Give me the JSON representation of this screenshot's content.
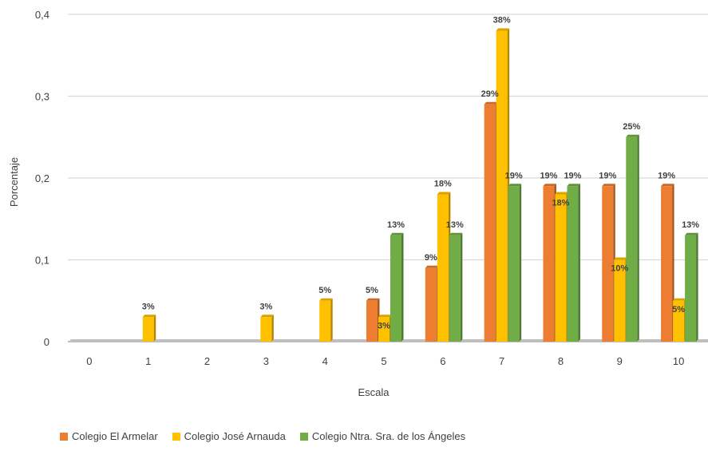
{
  "chart_data": {
    "type": "bar",
    "xlabel": "Escala",
    "ylabel": "Porcentaje",
    "ylim": [
      0,
      0.4
    ],
    "yticks": [
      "0",
      "0,1",
      "0,2",
      "0,3",
      "0,4"
    ],
    "categories": [
      "0",
      "1",
      "2",
      "3",
      "4",
      "5",
      "6",
      "7",
      "8",
      "9",
      "10"
    ],
    "grid": true,
    "legend_position": "bottom",
    "series": [
      {
        "name": "Colegio El Armelar",
        "color": "#ED7D31",
        "values": [
          0,
          0,
          0,
          0,
          0,
          0.05,
          0.09,
          0.29,
          0.19,
          0.19,
          0.19
        ],
        "labels": [
          "",
          "",
          "",
          "",
          "",
          "5%",
          "9%",
          "29%",
          "19%",
          "19%",
          "19%"
        ]
      },
      {
        "name": "Colegio José Arnauda",
        "color": "#FFC000",
        "values": [
          0,
          0.03,
          0,
          0.03,
          0.05,
          0.03,
          0.18,
          0.38,
          0.18,
          0.1,
          0.05
        ],
        "labels": [
          "",
          "3%",
          "",
          "3%",
          "5%",
          "3%",
          "18%",
          "38%",
          "18%",
          "10%",
          "5%"
        ]
      },
      {
        "name": "Colegio Ntra. Sra. de los Ángeles",
        "color": "#70AD47",
        "values": [
          0,
          0,
          0,
          0,
          0,
          0.13,
          0.13,
          0.19,
          0.19,
          0.25,
          0.13
        ],
        "labels": [
          "",
          "",
          "",
          "",
          "",
          "13%",
          "13%",
          "19%",
          "19%",
          "25%",
          "13%"
        ]
      }
    ]
  }
}
